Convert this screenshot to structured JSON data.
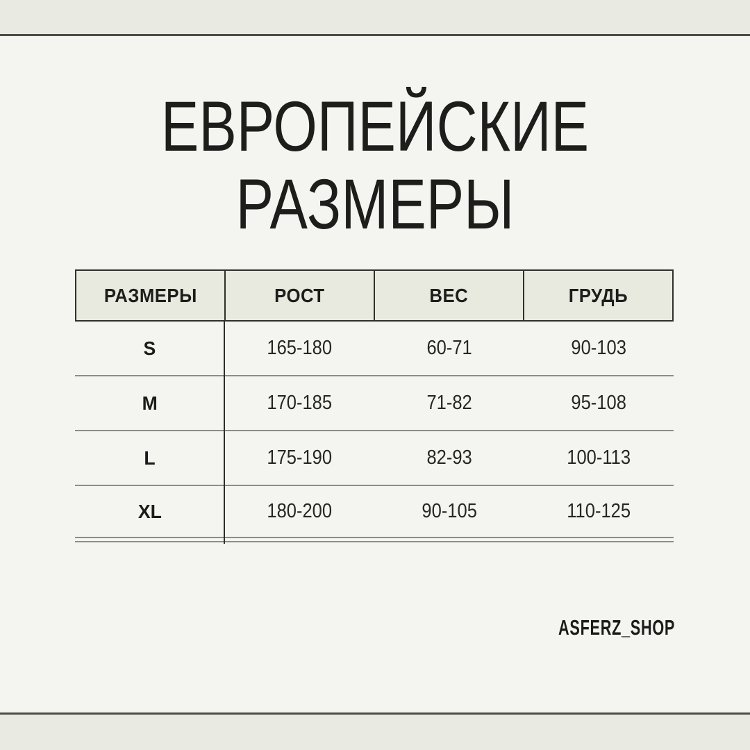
{
  "title": {
    "line1": "ЕВРОПЕЙСКИЕ",
    "line2": "РАЗМЕРЫ"
  },
  "size_table": {
    "columns": [
      "РАЗМЕРЫ",
      "РОСТ",
      "ВЕС",
      "ГРУДЬ"
    ],
    "rows": [
      {
        "size": "S",
        "rost": "165-180",
        "ves": "60-71",
        "grud": "90-103"
      },
      {
        "size": "M",
        "rost": "170-185",
        "ves": "71-82",
        "grud": "95-108"
      },
      {
        "size": "L",
        "rost": "175-190",
        "ves": "82-93",
        "grud": "100-113"
      },
      {
        "size": "XL",
        "rost": "180-200",
        "ves": "90-105",
        "grud": "110-125"
      }
    ]
  },
  "footer": {
    "brand": "ASFERZ_SHOP"
  },
  "colors": {
    "page_background": "#f4f4f1",
    "band_background": "#e9eae2",
    "band_line": "#4b4c44",
    "header_cell_background": "#e8eae0",
    "header_border": "#30302a",
    "row_rule": "#8c8c8a",
    "column_divider": "#2c2c28",
    "text": "#1d1d1b"
  }
}
